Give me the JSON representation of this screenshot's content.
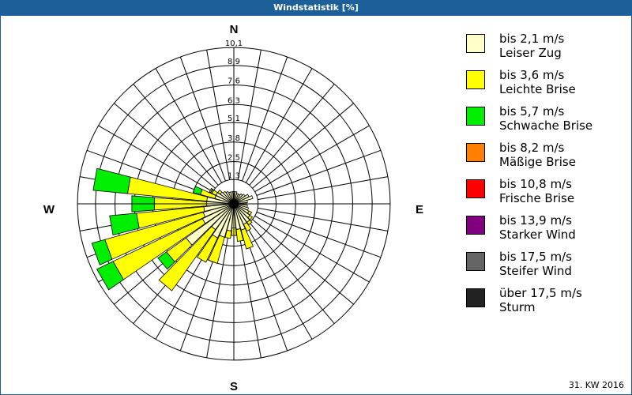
{
  "title": "Windstatistik [%]",
  "footer": "31. KW 2016",
  "chart_data": {
    "type": "wind-rose",
    "title": "Windstatistik [%]",
    "unit": "%",
    "directions_deg": [
      0,
      10,
      20,
      30,
      40,
      50,
      60,
      70,
      80,
      90,
      100,
      110,
      120,
      130,
      140,
      150,
      160,
      170,
      180,
      190,
      200,
      210,
      220,
      230,
      240,
      250,
      260,
      270,
      280,
      290,
      300,
      310,
      320,
      330,
      340,
      350
    ],
    "compass_labels": {
      "n": "N",
      "e": "E",
      "s": "S",
      "w": "W"
    },
    "ring_values": [
      1.3,
      2.5,
      3.8,
      5.1,
      6.3,
      7.6,
      8.9,
      10.1
    ],
    "ring_labels": [
      "1,3",
      "2,5",
      "3,8",
      "5,1",
      "6,3",
      "7,6",
      "8,9",
      "10,1"
    ],
    "rmax": 10.1,
    "series": [
      {
        "name": "bis 2,1 m/s",
        "label": "Leiser Zug",
        "color": "#ffffc8",
        "values": [
          0.5,
          0.5,
          0.4,
          0.4,
          0.5,
          0.6,
          0.8,
          1.0,
          0.6,
          0.5,
          0.6,
          0.7,
          0.8,
          1.0,
          1.2,
          1.2,
          1.5,
          1.4,
          1.3,
          1.5,
          2.0,
          2.2,
          1.8,
          3.6,
          2.0,
          1.8,
          1.7,
          1.5,
          1.5,
          1.0,
          1.0,
          0.8,
          0.7,
          0.6,
          0.5,
          0.5
        ]
      },
      {
        "name": "bis 3,6 m/s",
        "label": "Leichte Brise",
        "color": "#ffff00",
        "values": [
          0,
          0,
          0,
          0,
          0,
          0,
          0,
          0,
          0,
          0,
          0,
          0,
          0.2,
          0.2,
          0.2,
          0.5,
          1.3,
          0.8,
          0.5,
          0.5,
          1.8,
          1.8,
          5.0,
          1.6,
          6.6,
          6.8,
          4.5,
          3.5,
          5.3,
          1.0,
          0.3,
          0.2,
          0,
          0,
          0,
          0
        ]
      },
      {
        "name": "bis 5,7 m/s",
        "label": "Schwache Brise",
        "color": "#00ee00",
        "values": [
          0,
          0,
          0,
          0,
          0,
          0,
          0,
          0,
          0,
          0,
          0,
          0,
          0,
          0,
          0,
          0,
          0,
          0,
          0,
          0,
          0,
          0,
          0,
          0.7,
          1.2,
          0.9,
          1.8,
          1.5,
          2.3,
          0.5,
          0.1,
          0,
          0,
          0,
          0,
          0
        ]
      },
      {
        "name": "bis 8,2 m/s",
        "label": "Mäßige Brise",
        "color": "#ff8000",
        "values": [
          0,
          0,
          0,
          0,
          0,
          0,
          0,
          0,
          0,
          0,
          0,
          0,
          0,
          0,
          0,
          0,
          0,
          0,
          0,
          0,
          0,
          0,
          0,
          0,
          0,
          0,
          0,
          0,
          0,
          0,
          0.1,
          0,
          0,
          0,
          0,
          0
        ]
      },
      {
        "name": "bis 10,8 m/s",
        "label": "Frische Brise",
        "color": "#ff0000",
        "values": [
          0,
          0,
          0,
          0,
          0,
          0,
          0,
          0,
          0,
          0,
          0,
          0,
          0,
          0,
          0,
          0,
          0,
          0,
          0,
          0,
          0,
          0,
          0,
          0,
          0,
          0,
          0,
          0,
          0,
          0,
          0,
          0,
          0,
          0,
          0,
          0
        ]
      },
      {
        "name": "bis 13,9 m/s",
        "label": "Starker Wind",
        "color": "#800080",
        "values": [
          0,
          0,
          0,
          0,
          0,
          0,
          0,
          0,
          0,
          0,
          0,
          0,
          0,
          0,
          0,
          0,
          0,
          0,
          0,
          0,
          0,
          0,
          0,
          0,
          0,
          0,
          0,
          0,
          0,
          0,
          0,
          0,
          0,
          0,
          0,
          0
        ]
      },
      {
        "name": "bis 17,5 m/s",
        "label": "Steifer Wind",
        "color": "#646464",
        "values": [
          0,
          0,
          0,
          0,
          0,
          0,
          0,
          0,
          0,
          0,
          0,
          0,
          0,
          0,
          0,
          0,
          0,
          0,
          0,
          0,
          0,
          0,
          0,
          0,
          0,
          0,
          0,
          0,
          0,
          0,
          0,
          0,
          0,
          0,
          0,
          0
        ]
      },
      {
        "name": "über 17,5 m/s",
        "label": "Sturm",
        "color": "#222222",
        "values": [
          0,
          0,
          0,
          0,
          0,
          0,
          0,
          0,
          0,
          0,
          0,
          0,
          0,
          0,
          0,
          0,
          0,
          0,
          0,
          0,
          0,
          0,
          0,
          0,
          0,
          0,
          0,
          0,
          0,
          0,
          0,
          0,
          0,
          0,
          0,
          0
        ]
      }
    ],
    "legend_position": "right"
  }
}
